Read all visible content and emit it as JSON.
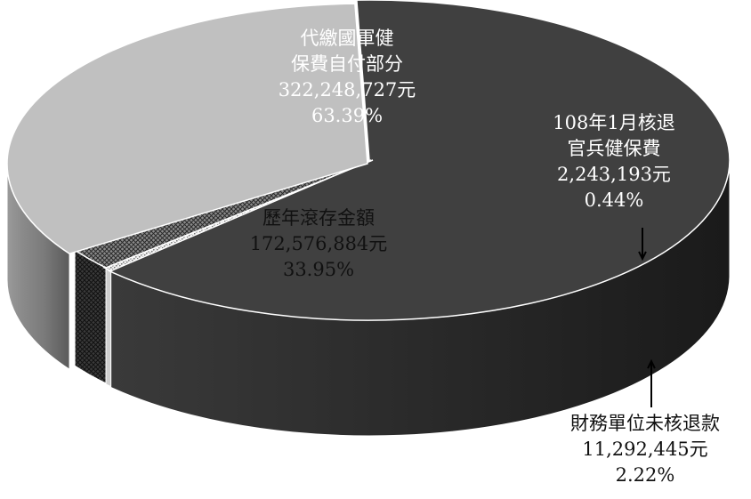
{
  "chart_data": {
    "type": "pie",
    "title": "",
    "style": "3d-exploded-pie",
    "unit": "元",
    "slices": [
      {
        "key": "self_paid",
        "lines": [
          "代繳國軍健",
          "保費自付部分"
        ],
        "value_text": "322,248,727元",
        "percent_text": "63.39%",
        "value": 322248727,
        "percent": 63.39,
        "color": "#404040"
      },
      {
        "key": "accumulated",
        "lines": [
          "歷年滾存金額"
        ],
        "value_text": "172,576,884元",
        "percent_text": "33.95%",
        "value": 172576884,
        "percent": 33.95,
        "color": "#c0c0c0"
      },
      {
        "key": "finance_unrefunded",
        "lines": [
          "財務單位未核退款"
        ],
        "value_text": "11,292,445元",
        "percent_text": "2.22%",
        "value": 11292445,
        "percent": 2.22,
        "color": "#555555",
        "pattern": "crosshatch"
      },
      {
        "key": "jan_refund",
        "lines": [
          "108年1月核退",
          "官兵健保費"
        ],
        "value_text": "2,243,193元",
        "percent_text": "0.44%",
        "value": 2243193,
        "percent": 0.44,
        "color": "#e0e0e0",
        "pattern": "dots"
      }
    ]
  }
}
